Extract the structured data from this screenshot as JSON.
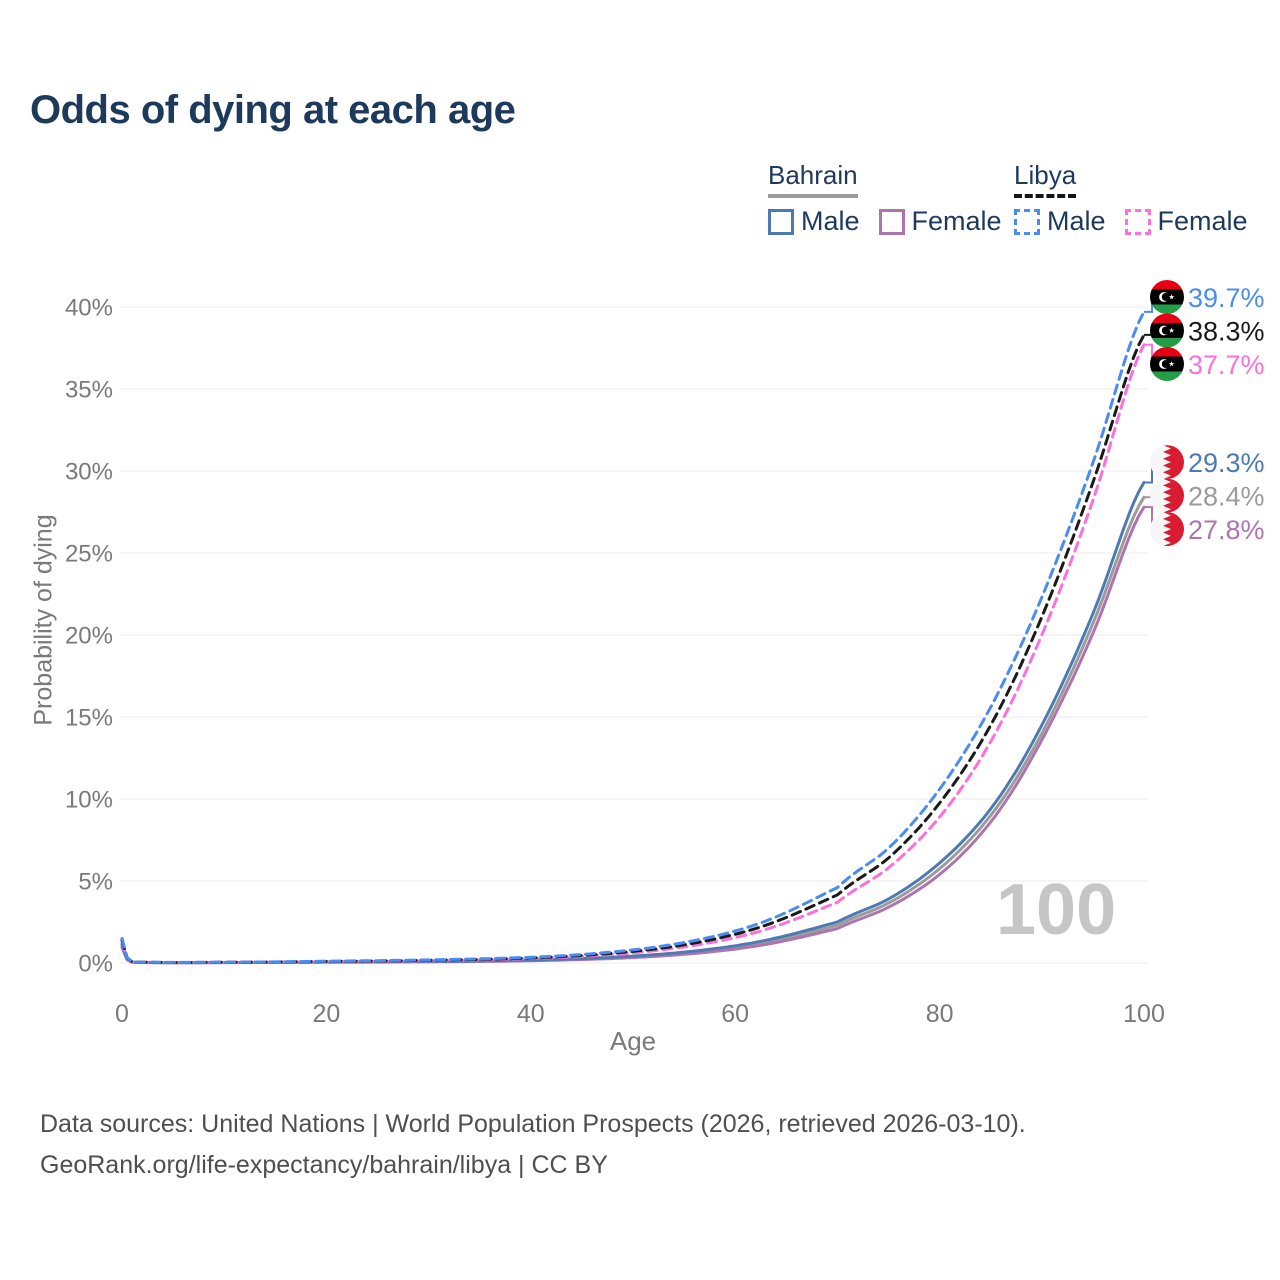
{
  "title": "Odds of dying at each age",
  "legend": {
    "groups": [
      {
        "label": "Bahrain",
        "line_style": "solid",
        "underline_color": "#9b9b9b",
        "items": [
          {
            "label": "Male",
            "color": "#4e7ab2",
            "dashed": false
          },
          {
            "label": "Female",
            "color": "#ae74b0",
            "dashed": false
          }
        ]
      },
      {
        "label": "Libya",
        "line_style": "dashed",
        "underline_color": "#161616",
        "items": [
          {
            "label": "Male",
            "color": "#4b8cf2",
            "dashed": true
          },
          {
            "label": "Female",
            "color": "#fa70dc",
            "dashed": true
          }
        ]
      }
    ]
  },
  "chart_data": {
    "type": "line",
    "xlabel": "Age",
    "ylabel": "Probability of dying",
    "xlim": [
      0,
      100
    ],
    "ylim": [
      0,
      40
    ],
    "x_ticks": [
      0,
      20,
      40,
      60,
      80,
      100
    ],
    "y_tick_labels": [
      "0%",
      "5%",
      "10%",
      "15%",
      "20%",
      "25%",
      "30%",
      "35%",
      "40%"
    ],
    "grid": "horizontal",
    "legend_position": "top-right",
    "watermark": "100",
    "series": [
      {
        "id": "bahrain-both",
        "country": "Bahrain",
        "sex": "Both sexes",
        "color": "#9b9b9b",
        "dashed": false,
        "flag": "bahrain",
        "end_label": "28.4%",
        "points": [
          [
            0,
            1.05
          ],
          [
            1,
            0.045
          ],
          [
            5,
            0.022
          ],
          [
            10,
            0.028
          ],
          [
            15,
            0.04
          ],
          [
            20,
            0.055
          ],
          [
            30,
            0.085
          ],
          [
            40,
            0.16
          ],
          [
            50,
            0.38
          ],
          [
            60,
            0.95
          ],
          [
            70,
            2.3
          ],
          [
            75,
            3.65
          ],
          [
            80,
            5.75
          ],
          [
            85,
            9.0
          ],
          [
            90,
            14.0
          ],
          [
            95,
            20.7
          ],
          [
            100,
            28.4
          ]
        ]
      },
      {
        "id": "bahrain-female",
        "country": "Bahrain",
        "sex": "Female",
        "color": "#ae74b0",
        "dashed": false,
        "flag": "bahrain",
        "end_label": "27.8%",
        "points": [
          [
            0,
            0.95
          ],
          [
            1,
            0.04
          ],
          [
            5,
            0.02
          ],
          [
            10,
            0.025
          ],
          [
            15,
            0.035
          ],
          [
            20,
            0.045
          ],
          [
            30,
            0.07
          ],
          [
            40,
            0.14
          ],
          [
            50,
            0.33
          ],
          [
            60,
            0.85
          ],
          [
            70,
            2.1
          ],
          [
            75,
            3.4
          ],
          [
            80,
            5.4
          ],
          [
            85,
            8.6
          ],
          [
            90,
            13.6
          ],
          [
            95,
            20.1
          ],
          [
            100,
            27.8
          ]
        ]
      },
      {
        "id": "bahrain-male",
        "country": "Bahrain",
        "sex": "Male",
        "color": "#4e7ab2",
        "dashed": false,
        "flag": "bahrain",
        "end_label": "29.3%",
        "points": [
          [
            0,
            1.15
          ],
          [
            1,
            0.05
          ],
          [
            5,
            0.025
          ],
          [
            10,
            0.03
          ],
          [
            15,
            0.045
          ],
          [
            20,
            0.065
          ],
          [
            30,
            0.1
          ],
          [
            40,
            0.18
          ],
          [
            50,
            0.42
          ],
          [
            60,
            1.05
          ],
          [
            70,
            2.5
          ],
          [
            75,
            3.9
          ],
          [
            80,
            6.1
          ],
          [
            85,
            9.4
          ],
          [
            90,
            14.5
          ],
          [
            95,
            21.3
          ],
          [
            100,
            29.3
          ]
        ]
      },
      {
        "id": "libya-female",
        "country": "Libya",
        "sex": "Female",
        "color": "#fa70dc",
        "dashed": true,
        "flag": "libya",
        "end_label": "37.7%",
        "points": [
          [
            0,
            1.3
          ],
          [
            1,
            0.06
          ],
          [
            5,
            0.03
          ],
          [
            10,
            0.038
          ],
          [
            15,
            0.055
          ],
          [
            20,
            0.08
          ],
          [
            30,
            0.14
          ],
          [
            40,
            0.27
          ],
          [
            50,
            0.62
          ],
          [
            60,
            1.55
          ],
          [
            70,
            3.7
          ],
          [
            75,
            5.8
          ],
          [
            80,
            8.9
          ],
          [
            85,
            13.5
          ],
          [
            90,
            20.0
          ],
          [
            95,
            28.2
          ],
          [
            100,
            37.7
          ]
        ]
      },
      {
        "id": "libya-both",
        "country": "Libya",
        "sex": "Both sexes",
        "color": "#1a1a1a",
        "dashed": true,
        "flag": "libya",
        "end_label": "38.3%",
        "points": [
          [
            0,
            1.4
          ],
          [
            1,
            0.065
          ],
          [
            5,
            0.032
          ],
          [
            10,
            0.042
          ],
          [
            15,
            0.062
          ],
          [
            20,
            0.095
          ],
          [
            30,
            0.165
          ],
          [
            40,
            0.31
          ],
          [
            50,
            0.71
          ],
          [
            60,
            1.75
          ],
          [
            70,
            4.15
          ],
          [
            75,
            6.4
          ],
          [
            80,
            9.75
          ],
          [
            85,
            14.5
          ],
          [
            90,
            21.1
          ],
          [
            95,
            29.3
          ],
          [
            100,
            38.3
          ]
        ]
      },
      {
        "id": "libya-male",
        "country": "Libya",
        "sex": "Male",
        "color": "#4b8cf2",
        "dashed": true,
        "flag": "libya",
        "end_label": "39.7%",
        "points": [
          [
            0,
            1.5
          ],
          [
            1,
            0.07
          ],
          [
            5,
            0.035
          ],
          [
            10,
            0.045
          ],
          [
            15,
            0.07
          ],
          [
            20,
            0.11
          ],
          [
            30,
            0.19
          ],
          [
            40,
            0.35
          ],
          [
            50,
            0.8
          ],
          [
            60,
            1.95
          ],
          [
            70,
            4.6
          ],
          [
            75,
            7.0
          ],
          [
            80,
            10.6
          ],
          [
            85,
            15.6
          ],
          [
            90,
            22.3
          ],
          [
            95,
            30.5
          ],
          [
            100,
            39.7
          ]
        ]
      }
    ]
  },
  "footer": {
    "line1": "Data sources: United Nations | World Population Prospects (2026, retrieved 2026-03-10).",
    "line2": "GeoRank.org/life-expectancy/bahrain/libya | CC BY"
  }
}
